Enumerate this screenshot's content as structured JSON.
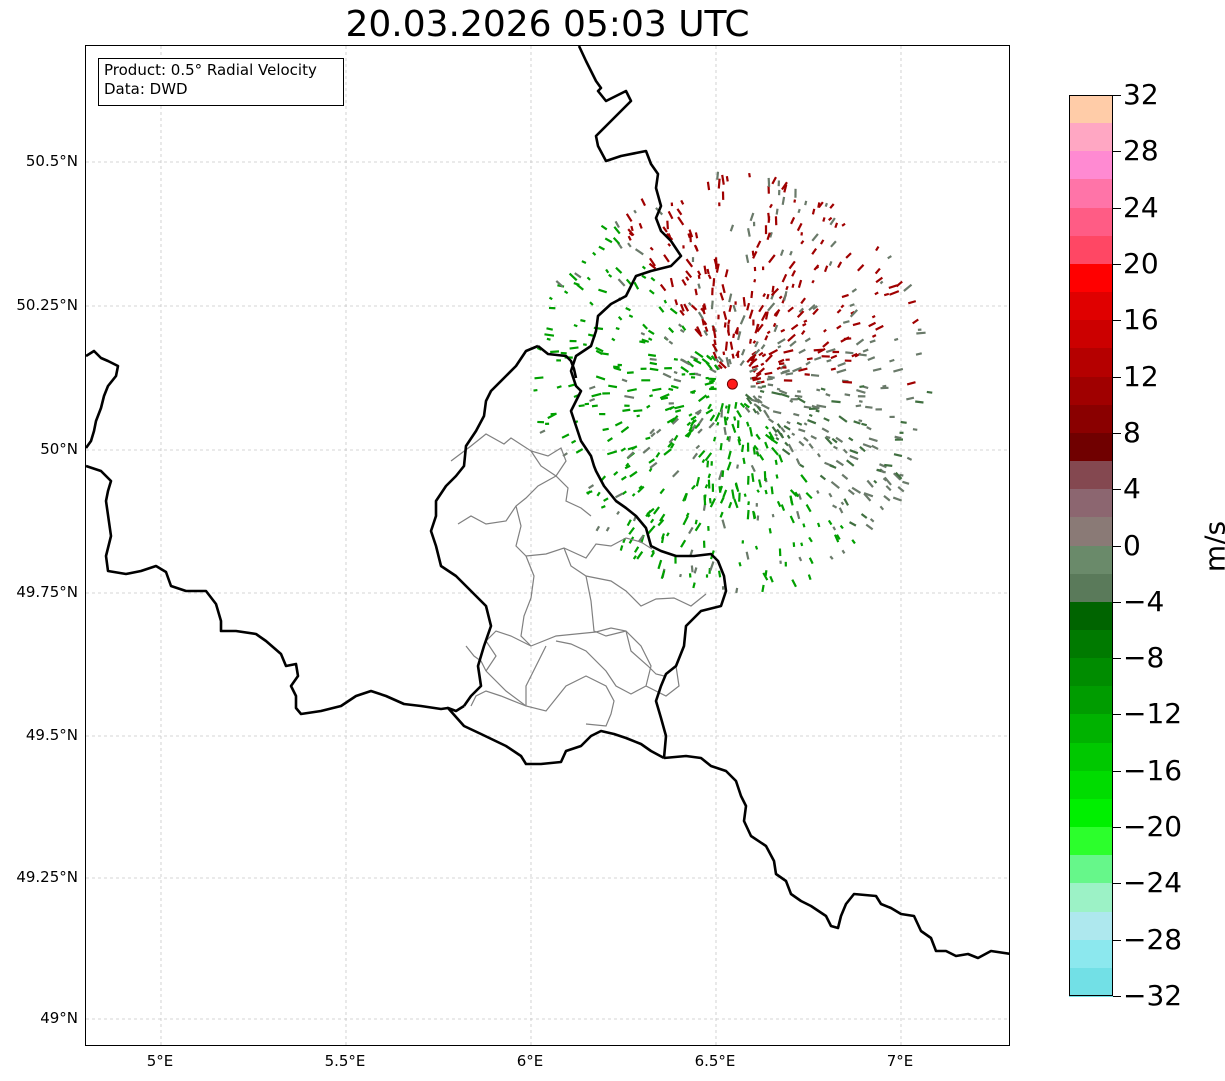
{
  "title": "20.03.2026 05:03 UTC",
  "info_box": {
    "product": "Product: 0.5° Radial Velocity",
    "data": "Data: DWD"
  },
  "lat_labels": [
    "50.5°N",
    "50.25°N",
    "50°N",
    "49.75°N",
    "49.5°N",
    "49.25°N",
    "49°N"
  ],
  "lon_labels": [
    "5°E",
    "5.5°E",
    "6°E",
    "6.5°E",
    "7°E"
  ],
  "radar_site": {
    "lon": 6.547,
    "lat": 50.109,
    "color": "#ff1a1a"
  },
  "colorbar": {
    "unit": "m/s",
    "tick_labels": [
      "32",
      "28",
      "24",
      "20",
      "16",
      "12",
      "8",
      "4",
      "0",
      "−4",
      "−8",
      "−12",
      "−16",
      "−20",
      "−24",
      "−28",
      "−32"
    ],
    "colors_top_to_bottom": [
      "#ffcca8",
      "#ffa7c3",
      "#ff8ad2",
      "#ff74a8",
      "#ff5c85",
      "#ff4764",
      "#ff0000",
      "#e00000",
      "#cc0000",
      "#b50000",
      "#a00000",
      "#8a0000",
      "#700000",
      "#844850",
      "#8c6670",
      "#8a7a76",
      "#6a8a6a",
      "#5a7a5a",
      "#006400",
      "#007a00",
      "#008c00",
      "#009c00",
      "#00b200",
      "#00c800",
      "#00dc00",
      "#00f000",
      "#2cff2c",
      "#66f78a",
      "#9cf2c6",
      "#aee8ee",
      "#8ce8ee",
      "#72e0e6"
    ]
  },
  "colors": {
    "approaching": "#00a000",
    "receding": "#a00000",
    "near_zero": "#6a7a6a",
    "country_border": "#000000",
    "canton_border": "#808080",
    "grid": "#c8c8c8"
  }
}
